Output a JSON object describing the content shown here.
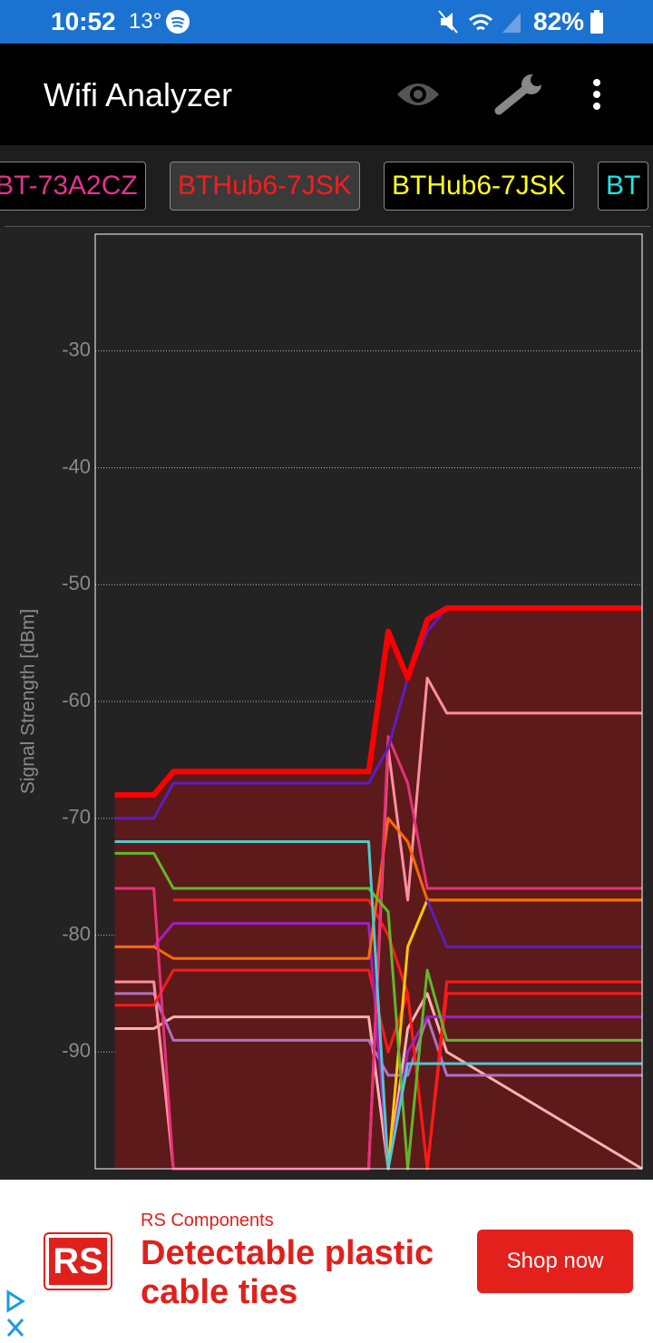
{
  "status_bar": {
    "time": "10:52",
    "temperature": "13°",
    "battery": "82%"
  },
  "app_bar": {
    "title": "Wifi Analyzer"
  },
  "tabs": [
    {
      "label": "BT-73A2CZ",
      "color": "#e8308f"
    },
    {
      "label": "BTHub6-7JSK",
      "color": "#ff1a1a",
      "selected": true
    },
    {
      "label": "BTHub6-7JSK",
      "color": "#ffff1a"
    },
    {
      "label": "BT",
      "color": "#1ae8e8"
    }
  ],
  "chart_data": {
    "type": "line",
    "y_label": "Signal Strength [dBm]",
    "x": [
      0,
      2,
      3,
      13,
      14,
      15,
      16,
      17,
      27
    ],
    "xlim": [
      -1,
      27
    ],
    "ylim": [
      -100,
      -20
    ],
    "yticks": [
      -90,
      -80,
      -70,
      -60,
      -50,
      -40,
      -30
    ],
    "grid": true,
    "series": [
      {
        "color": "#ff0000",
        "fill": "#5c1a1a",
        "width": 6,
        "values": [
          -68,
          -68,
          -66,
          -66,
          -54,
          -58,
          -53,
          -52,
          -52
        ]
      },
      {
        "color": "#5a1fc0",
        "width": 3,
        "values": [
          -70,
          -70,
          -67,
          -67,
          -64,
          -58,
          -54,
          -52,
          null
        ]
      },
      {
        "color": "#5a1fc0",
        "width": 3,
        "values": [
          null,
          null,
          null,
          null,
          null,
          null,
          -77,
          -81,
          -81
        ]
      },
      {
        "color": "#4fc8cc",
        "width": 3,
        "values": [
          -72,
          -72,
          -72,
          -72,
          -100,
          -91,
          -91,
          -91,
          -91
        ]
      },
      {
        "color": "#5fb82a",
        "width": 3,
        "values": [
          -73,
          -73,
          -76,
          -76,
          -78,
          -100,
          -83,
          -89,
          -89
        ]
      },
      {
        "color": "#e8307a",
        "width": 3,
        "values": [
          -76,
          -76,
          -100,
          -100,
          -63,
          -67,
          -76,
          -76,
          -76
        ]
      },
      {
        "color": "#ff6a00",
        "width": 3,
        "values": [
          -81,
          -81,
          -82,
          -82,
          -70,
          -72,
          -77,
          -77,
          -77
        ]
      },
      {
        "color": "#ffc800",
        "width": 3,
        "values": [
          null,
          null,
          null,
          null,
          -100,
          -81,
          -77,
          -77,
          -77
        ]
      },
      {
        "color": "#a020c0",
        "width": 3,
        "values": [
          -81,
          -81,
          -79,
          -79,
          -100,
          -90,
          -87,
          -87,
          -87
        ]
      },
      {
        "color": "#ff1a1a",
        "width": 3,
        "values": [
          -86,
          -86,
          -83,
          -83,
          -90,
          -85,
          -100,
          -84,
          -84
        ]
      },
      {
        "color": "#ff1a1a",
        "width": 3,
        "values": [
          null,
          null,
          -77,
          -77,
          -80,
          -85,
          -100,
          -85,
          -85
        ]
      },
      {
        "color": "#ff8fa0",
        "width": 3,
        "values": [
          -84,
          -84,
          -100,
          -100,
          -64,
          -77,
          -58,
          -61,
          -61
        ]
      },
      {
        "color": "#b070c8",
        "width": 3,
        "values": [
          -85,
          -85,
          -89,
          -89,
          -92,
          -92,
          -87,
          -92,
          -92
        ]
      },
      {
        "color": "#ffb0b0",
        "width": 3,
        "values": [
          -88,
          -88,
          -87,
          -87,
          -100,
          -88,
          -85,
          -90,
          -100
        ]
      }
    ]
  },
  "ad": {
    "logo": "RS",
    "advertiser": "RS Components",
    "headline": "Detectable plastic cable ties",
    "button": "Shop now"
  }
}
